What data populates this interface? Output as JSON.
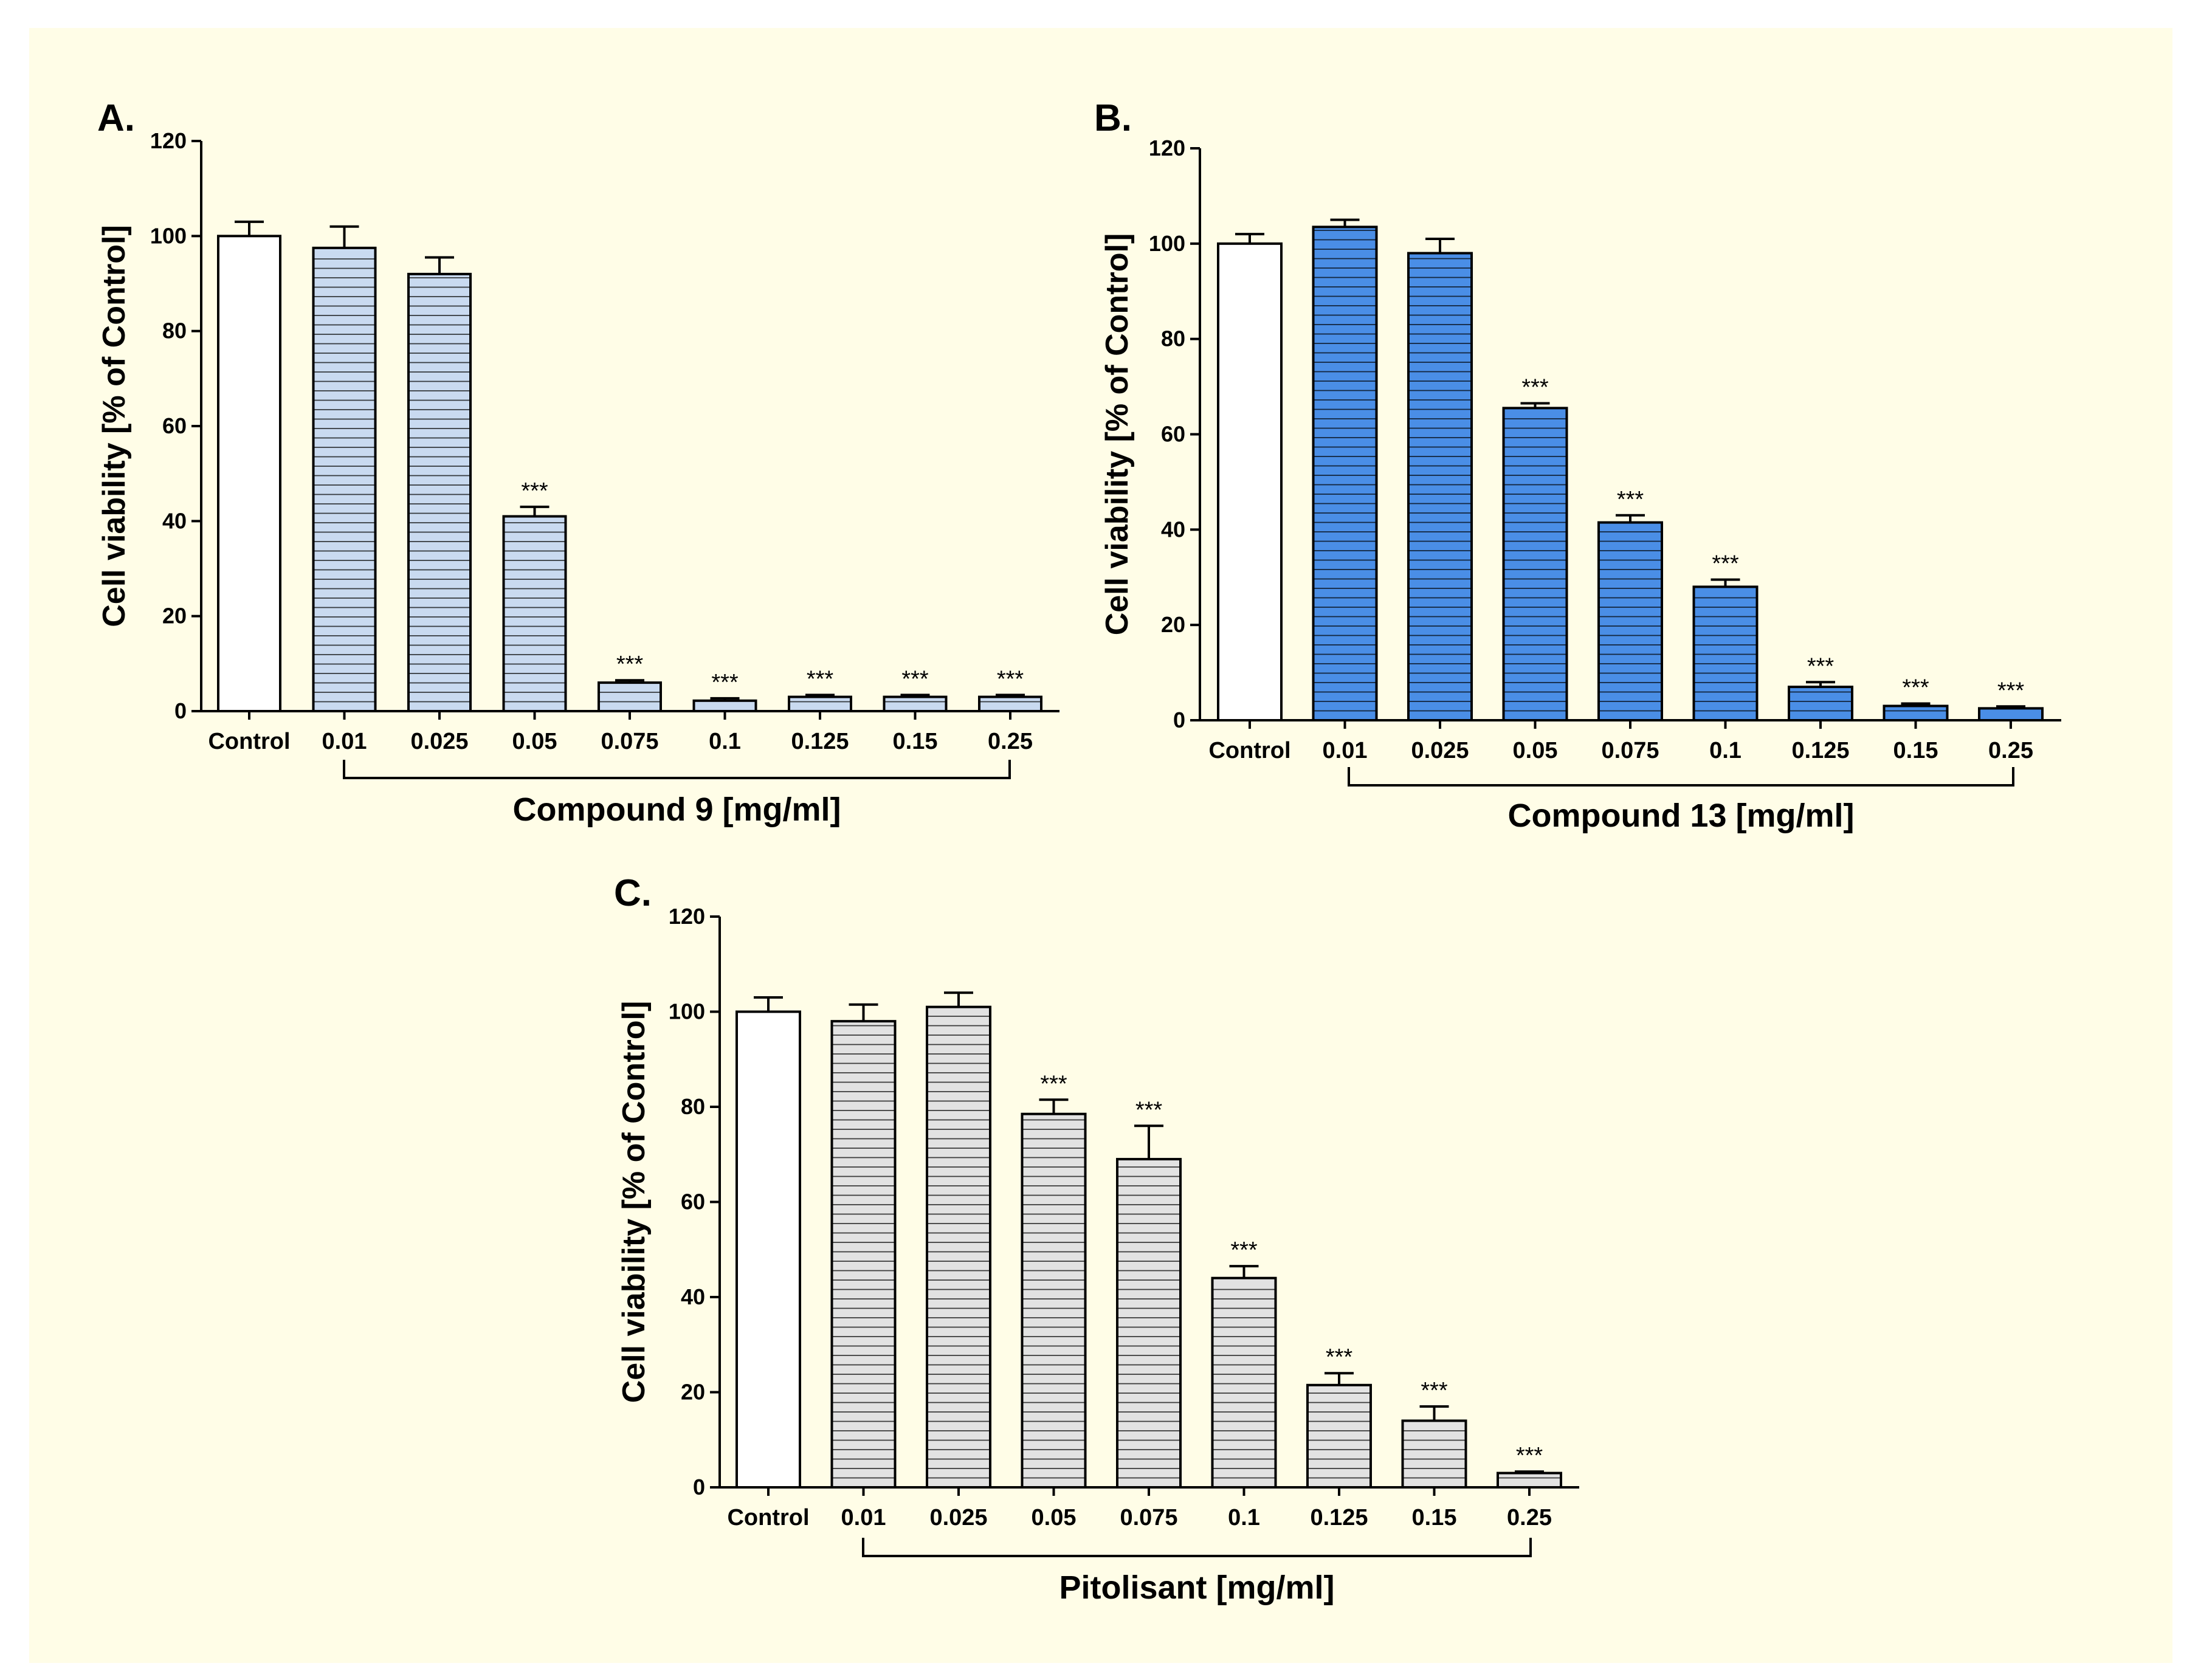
{
  "colors": {
    "background": "#fffde7",
    "panel_A_bar": "#c9daf0",
    "panel_B_bar": "#4a8ee6",
    "panel_C_bar": "#e2e2e2",
    "control_bar": "#ffffff",
    "ink": "#000000"
  },
  "chart_data": [
    {
      "panel": "A.",
      "type": "bar",
      "title": "",
      "xlabel": "Compound 9 [mg/ml]",
      "ylabel": "Cell viability [% of Control]",
      "ylim": [
        0,
        120
      ],
      "yticks": [
        "0",
        "20",
        "40",
        "60",
        "80",
        "100",
        "120"
      ],
      "categories": [
        "Control",
        "0.01",
        "0.025",
        "0.05",
        "0.075",
        "0.1",
        "0.125",
        "0.15",
        "0.25"
      ],
      "values": [
        100,
        97.5,
        92,
        41,
        6,
        2.2,
        3,
        3,
        3
      ],
      "errors": [
        3,
        4.5,
        3.5,
        2,
        0.5,
        0.5,
        0.4,
        0.4,
        0.4
      ],
      "significance": [
        "",
        "",
        "",
        "***",
        "***",
        "***",
        "***",
        "***",
        "***"
      ]
    },
    {
      "panel": "B.",
      "type": "bar",
      "title": "",
      "xlabel": "Compound 13 [mg/ml]",
      "ylabel": "Cell viability [% of Control]",
      "ylim": [
        0,
        120
      ],
      "yticks": [
        "0",
        "20",
        "40",
        "60",
        "80",
        "100",
        "120"
      ],
      "categories": [
        "Control",
        "0.01",
        "0.025",
        "0.05",
        "0.075",
        "0.1",
        "0.125",
        "0.15",
        "0.25"
      ],
      "values": [
        100,
        103.5,
        98,
        65.5,
        41.5,
        28,
        7,
        3,
        2.5
      ],
      "errors": [
        2,
        1.5,
        3,
        1,
        1.5,
        1.5,
        1,
        0.5,
        0.4
      ],
      "significance": [
        "",
        "",
        "",
        "***",
        "***",
        "***",
        "***",
        "***",
        "***"
      ]
    },
    {
      "panel": "C.",
      "type": "bar",
      "title": "",
      "xlabel": "Pitolisant [mg/ml]",
      "ylabel": "Cell viability [% of Control]",
      "ylim": [
        0,
        120
      ],
      "yticks": [
        "0",
        "20",
        "40",
        "60",
        "80",
        "100",
        "120"
      ],
      "categories": [
        "Control",
        "0.01",
        "0.025",
        "0.05",
        "0.075",
        "0.1",
        "0.125",
        "0.15",
        "0.25"
      ],
      "values": [
        100,
        98,
        101,
        78.5,
        69,
        44,
        21.5,
        14,
        3
      ],
      "errors": [
        3,
        3.5,
        3,
        3,
        7,
        2.5,
        2.5,
        3,
        0.3
      ],
      "significance": [
        "",
        "",
        "",
        "***",
        "***",
        "***",
        "***",
        "***",
        "***"
      ]
    }
  ]
}
